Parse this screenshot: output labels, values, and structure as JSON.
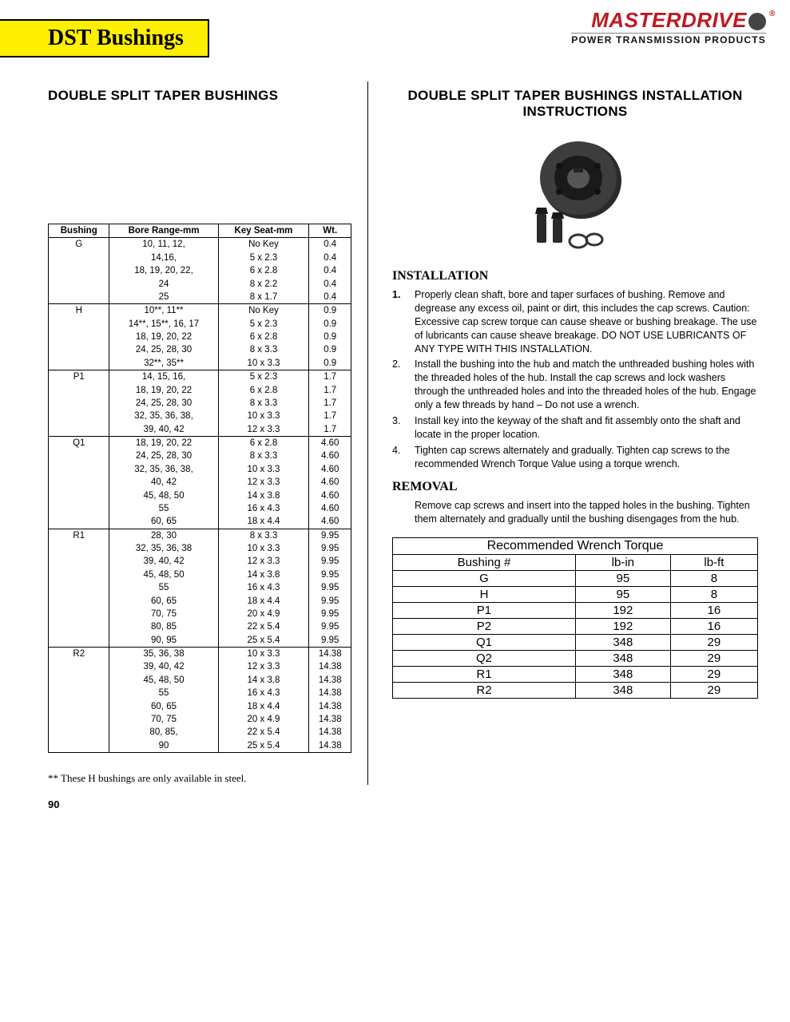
{
  "header": {
    "tab": "DST Bushings",
    "brand": "MASTERDRIVE",
    "brand_sub": "POWER TRANSMISSION PRODUCTS"
  },
  "left": {
    "title": "DOUBLE SPLIT TAPER BUSHINGS",
    "table": {
      "headers": [
        "Bushing",
        "Bore Range-mm",
        "Key Seat-mm",
        "Wt."
      ],
      "groups": [
        {
          "name": "G",
          "rows": [
            {
              "bore": "10, 11, 12,",
              "ks": "No Key",
              "wt": "0.4"
            },
            {
              "bore": "14,16,",
              "ks": "5   x   2.3",
              "wt": "0.4"
            },
            {
              "bore": "18, 19, 20, 22,",
              "ks": "6   x   2.8",
              "wt": "0.4"
            },
            {
              "bore": "24",
              "ks": "8   x   2.2",
              "wt": "0.4"
            },
            {
              "bore": "25",
              "ks": "8   x   1.7",
              "wt": "0.4"
            }
          ]
        },
        {
          "name": "H",
          "rows": [
            {
              "bore": "10**, 11**",
              "ks": "No Key",
              "wt": "0.9"
            },
            {
              "bore": "14**, 15**, 16, 17",
              "ks": "5   x   2.3",
              "wt": "0.9"
            },
            {
              "bore": "18, 19, 20, 22",
              "ks": "6   x   2.8",
              "wt": "0.9"
            },
            {
              "bore": "24, 25, 28, 30",
              "ks": "8   x   3.3",
              "wt": "0.9"
            },
            {
              "bore": "32**, 35**",
              "ks": "10   x   3.3",
              "wt": "0.9"
            }
          ]
        },
        {
          "name": "P1",
          "rows": [
            {
              "bore": "14, 15, 16,",
              "ks": "5   x   2.3",
              "wt": "1.7"
            },
            {
              "bore": "18, 19, 20, 22",
              "ks": "6   x   2.8",
              "wt": "1.7"
            },
            {
              "bore": "24, 25, 28, 30",
              "ks": "8   x   3.3",
              "wt": "1.7"
            },
            {
              "bore": "32, 35, 36, 38,",
              "ks": "10   x   3.3",
              "wt": "1.7"
            },
            {
              "bore": "39, 40, 42",
              "ks": "12   x   3.3",
              "wt": "1.7"
            }
          ]
        },
        {
          "name": "Q1",
          "rows": [
            {
              "bore": "18, 19, 20, 22",
              "ks": "6   x   2.8",
              "wt": "4.60"
            },
            {
              "bore": "24, 25, 28, 30",
              "ks": "8   x   3.3",
              "wt": "4.60"
            },
            {
              "bore": "32, 35, 36, 38,",
              "ks": "10   x   3.3",
              "wt": "4.60"
            },
            {
              "bore": "40, 42",
              "ks": "12   x   3.3",
              "wt": "4.60"
            },
            {
              "bore": "45, 48, 50",
              "ks": "14   x   3.8",
              "wt": "4.60"
            },
            {
              "bore": "55",
              "ks": "16   x   4.3",
              "wt": "4.60"
            },
            {
              "bore": "60, 65",
              "ks": "18   x   4.4",
              "wt": "4.60"
            }
          ]
        },
        {
          "name": "R1",
          "rows": [
            {
              "bore": "28, 30",
              "ks": "8   x   3.3",
              "wt": "9.95"
            },
            {
              "bore": "32, 35, 36, 38",
              "ks": "10   x   3.3",
              "wt": "9.95"
            },
            {
              "bore": "39, 40, 42",
              "ks": "12   x   3.3",
              "wt": "9.95"
            },
            {
              "bore": "45, 48, 50",
              "ks": "14   x   3.8",
              "wt": "9.95"
            },
            {
              "bore": "55",
              "ks": "16   x   4.3",
              "wt": "9.95"
            },
            {
              "bore": "60, 65",
              "ks": "18   x   4.4",
              "wt": "9.95"
            },
            {
              "bore": "70, 75",
              "ks": "20   x   4.9",
              "wt": "9.95"
            },
            {
              "bore": "80, 85",
              "ks": "22   x   5.4",
              "wt": "9.95"
            },
            {
              "bore": "90, 95",
              "ks": "25   x   5.4",
              "wt": "9.95"
            }
          ]
        },
        {
          "name": "R2",
          "rows": [
            {
              "bore": "35, 36, 38",
              "ks": "10   x   3.3",
              "wt": "14.38"
            },
            {
              "bore": "39, 40, 42",
              "ks": "12   x   3.3",
              "wt": "14.38"
            },
            {
              "bore": "45, 48, 50",
              "ks": "14   x   3.8",
              "wt": "14.38"
            },
            {
              "bore": "55",
              "ks": "16   x   4.3",
              "wt": "14.38"
            },
            {
              "bore": "60, 65",
              "ks": "18   x   4.4",
              "wt": "14.38"
            },
            {
              "bore": "70, 75",
              "ks": "20   x   4.9",
              "wt": "14.38"
            },
            {
              "bore": "80, 85,",
              "ks": "22   x   5.4",
              "wt": "14.38"
            },
            {
              "bore": "90",
              "ks": "25   x   5.4",
              "wt": "14.38"
            }
          ]
        }
      ]
    },
    "footnote": "**   These H bushings are only available in steel."
  },
  "right": {
    "title": "DOUBLE SPLIT TAPER BUSHINGS INSTALLATION INSTRUCTIONS",
    "install_heading": "INSTALLATION",
    "install_steps": [
      {
        "n": "1.",
        "bold": true,
        "t": "Properly clean shaft, bore and taper surfaces of bushing. Remove and degrease any excess oil, paint or dirt, this includes the cap screws.  Caution:  Excessive cap screw torque can cause sheave or bushing breakage.  The use of lubricants can cause sheave breakage.   DO NOT USE LUBRICANTS OF ANY TYPE WITH THIS INSTALLATION."
      },
      {
        "n": "2.",
        "t": "Install the bushing into the hub and match the unthreaded bushing holes with the threaded holes of the hub.  Install the cap screws and lock washers through the unthreaded holes and into the threaded holes of the hub.  Engage only a few threads by hand – Do not use a wrench."
      },
      {
        "n": "3.",
        "t": "Install key into the keyway of the shaft and fit assembly onto the shaft and locate in the proper location."
      },
      {
        "n": "4.",
        "t": "Tighten cap screws alternately and gradually.  Tighten cap screws to the recommended Wrench Torque Value using a torque wrench."
      }
    ],
    "removal_heading": "REMOVAL",
    "removal_text": "Remove cap screws and insert into the tapped holes in the bushing. Tighten them alternately and gradually until the bushing disengages from the hub.",
    "torque": {
      "title": "Recommended Wrench Torque",
      "headers": [
        "Bushing #",
        "lb-in",
        "lb-ft"
      ],
      "rows": [
        [
          "G",
          "95",
          "8"
        ],
        [
          "H",
          "95",
          "8"
        ],
        [
          "P1",
          "192",
          "16"
        ],
        [
          "P2",
          "192",
          "16"
        ],
        [
          "Q1",
          "348",
          "29"
        ],
        [
          "Q2",
          "348",
          "29"
        ],
        [
          "R1",
          "348",
          "29"
        ],
        [
          "R2",
          "348",
          "29"
        ]
      ]
    }
  },
  "page_number": "90",
  "colors": {
    "tab_bg": "#ffef00",
    "brand_red": "#c01822"
  }
}
